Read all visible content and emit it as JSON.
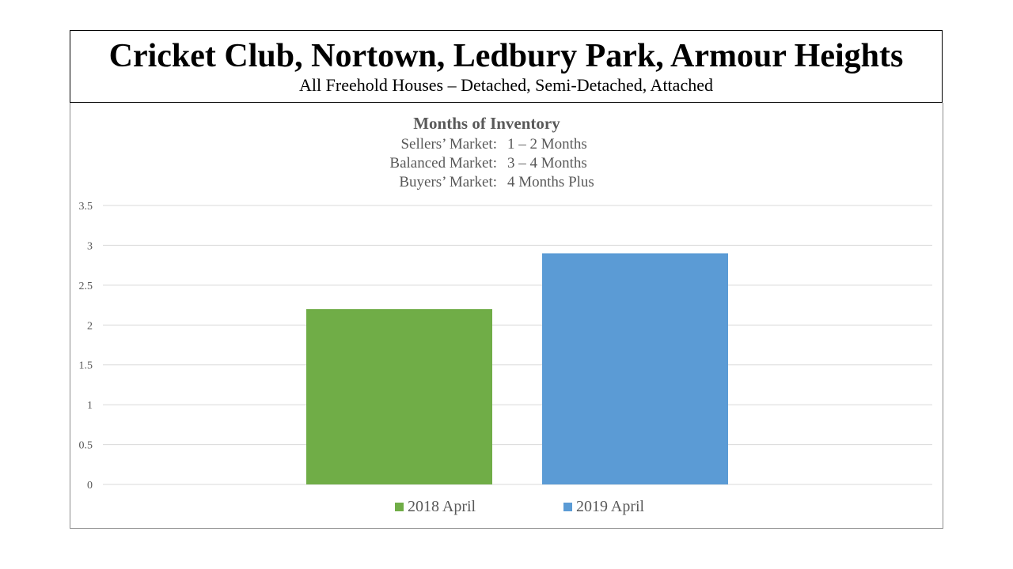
{
  "header": {
    "title": "Cricket Club, Nortown, Ledbury Park, Armour Heights",
    "subtitle": "All Freehold Houses – Detached, Semi-Detached, Attached"
  },
  "chart_data": {
    "type": "bar",
    "title": "Months of Inventory",
    "annotations": [
      {
        "label": "Sellers’ Market:",
        "value": "1 – 2 Months"
      },
      {
        "label": "Balanced Market:",
        "value": "3 – 4 Months"
      },
      {
        "label": "Buyers’ Market:",
        "value": "4 Months Plus"
      }
    ],
    "categories": [
      "2018 April",
      "2019 April"
    ],
    "values": [
      2.2,
      2.9
    ],
    "colors": [
      "#70ad47",
      "#5b9bd5"
    ],
    "gridline_color": "#d9d9d9",
    "ylim": [
      0,
      3.5
    ],
    "yticks": [
      "0",
      "0.5",
      "1",
      "1.5",
      "2",
      "2.5",
      "3",
      "3.5"
    ],
    "grid": true,
    "legend": "bottom-center",
    "xlabel": "",
    "ylabel": ""
  }
}
